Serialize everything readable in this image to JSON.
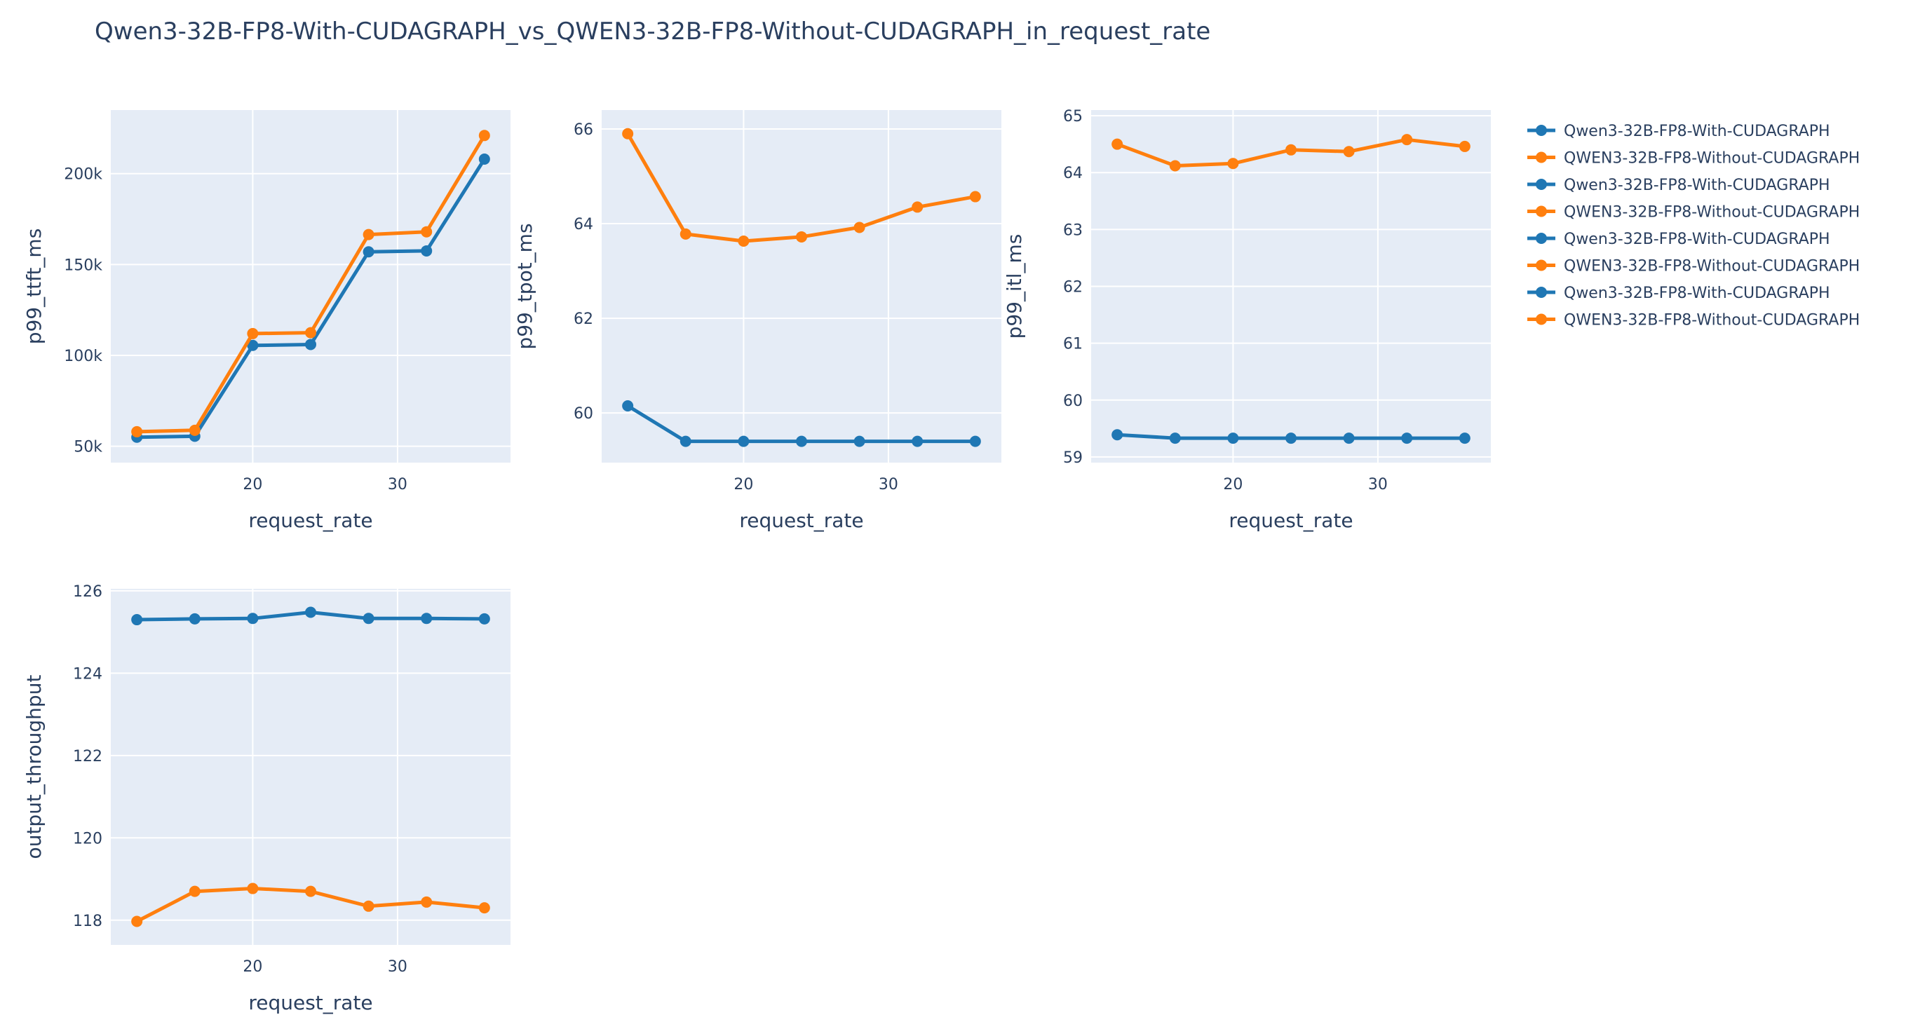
{
  "figure": {
    "title": "Qwen3-32B-FP8-With-CUDAGRAPH_vs_QWEN3-32B-FP8-Without-CUDAGRAPH_in_request_rate",
    "background": "#ffffff",
    "plot_background": "#e5ecf6",
    "grid_color": "#ffffff",
    "text_color": "#2a3f5f",
    "series_colors": {
      "Qwen3-32B-FP8-With-CUDAGRAPH": "#1f77b4",
      "QWEN3-32B-FP8-Without-CUDAGRAPH": "#ff7f0e"
    }
  },
  "legend": {
    "placement": "right",
    "entries": [
      {
        "name": "Qwen3-32B-FP8-With-CUDAGRAPH",
        "color": "#1f77b4"
      },
      {
        "name": "QWEN3-32B-FP8-Without-CUDAGRAPH",
        "color": "#ff7f0e"
      },
      {
        "name": "Qwen3-32B-FP8-With-CUDAGRAPH",
        "color": "#1f77b4"
      },
      {
        "name": "QWEN3-32B-FP8-Without-CUDAGRAPH",
        "color": "#ff7f0e"
      },
      {
        "name": "Qwen3-32B-FP8-With-CUDAGRAPH",
        "color": "#1f77b4"
      },
      {
        "name": "QWEN3-32B-FP8-Without-CUDAGRAPH",
        "color": "#ff7f0e"
      },
      {
        "name": "Qwen3-32B-FP8-With-CUDAGRAPH",
        "color": "#1f77b4"
      },
      {
        "name": "QWEN3-32B-FP8-Without-CUDAGRAPH",
        "color": "#ff7f0e"
      }
    ]
  },
  "chart_data": [
    {
      "id": "ttft",
      "type": "line",
      "xlabel": "request_rate",
      "ylabel": "p99_ttft_ms",
      "xlim": [
        10.2,
        37.8
      ],
      "ylim": [
        41000,
        235000
      ],
      "grid": true,
      "xticks": [
        {
          "value": 20,
          "label": "20"
        },
        {
          "value": 30,
          "label": "30"
        }
      ],
      "yticks": [
        {
          "value": 50000,
          "label": "50k"
        },
        {
          "value": 100000,
          "label": "100k"
        },
        {
          "value": 150000,
          "label": "150k"
        },
        {
          "value": 200000,
          "label": "200k"
        }
      ],
      "x": [
        12,
        16,
        20,
        24,
        28,
        32,
        36
      ],
      "series": [
        {
          "name": "Qwen3-32B-FP8-With-CUDAGRAPH",
          "color": "#1f77b4",
          "values": [
            55000,
            55500,
            105500,
            106000,
            157000,
            157500,
            208000
          ]
        },
        {
          "name": "QWEN3-32B-FP8-Without-CUDAGRAPH",
          "color": "#ff7f0e",
          "values": [
            58000,
            58800,
            112000,
            112500,
            166500,
            168000,
            221000
          ]
        }
      ]
    },
    {
      "id": "tpot",
      "type": "line",
      "xlabel": "request_rate",
      "ylabel": "p99_tpot_ms",
      "xlim": [
        10.2,
        37.8
      ],
      "ylim": [
        58.95,
        66.4
      ],
      "grid": true,
      "xticks": [
        {
          "value": 20,
          "label": "20"
        },
        {
          "value": 30,
          "label": "30"
        }
      ],
      "yticks": [
        {
          "value": 60,
          "label": "60"
        },
        {
          "value": 62,
          "label": "62"
        },
        {
          "value": 64,
          "label": "64"
        },
        {
          "value": 66,
          "label": "66"
        }
      ],
      "x": [
        12,
        16,
        20,
        24,
        28,
        32,
        36
      ],
      "series": [
        {
          "name": "Qwen3-32B-FP8-With-CUDAGRAPH",
          "color": "#1f77b4",
          "values": [
            60.15,
            59.4,
            59.4,
            59.4,
            59.4,
            59.4,
            59.4
          ]
        },
        {
          "name": "QWEN3-32B-FP8-Without-CUDAGRAPH",
          "color": "#ff7f0e",
          "values": [
            65.9,
            63.78,
            63.63,
            63.72,
            63.92,
            64.35,
            64.57
          ]
        }
      ]
    },
    {
      "id": "itl",
      "type": "line",
      "xlabel": "request_rate",
      "ylabel": "p99_itl_ms",
      "xlim": [
        10.2,
        37.8
      ],
      "ylim": [
        58.9,
        65.1
      ],
      "grid": true,
      "xticks": [
        {
          "value": 20,
          "label": "20"
        },
        {
          "value": 30,
          "label": "30"
        }
      ],
      "yticks": [
        {
          "value": 59,
          "label": "59"
        },
        {
          "value": 60,
          "label": "60"
        },
        {
          "value": 61,
          "label": "61"
        },
        {
          "value": 62,
          "label": "62"
        },
        {
          "value": 63,
          "label": "63"
        },
        {
          "value": 64,
          "label": "64"
        },
        {
          "value": 65,
          "label": "65"
        }
      ],
      "x": [
        12,
        16,
        20,
        24,
        28,
        32,
        36
      ],
      "series": [
        {
          "name": "Qwen3-32B-FP8-With-CUDAGRAPH",
          "color": "#1f77b4",
          "values": [
            59.39,
            59.33,
            59.33,
            59.33,
            59.33,
            59.33,
            59.33
          ]
        },
        {
          "name": "QWEN3-32B-FP8-Without-CUDAGRAPH",
          "color": "#ff7f0e",
          "values": [
            64.5,
            64.12,
            64.16,
            64.4,
            64.37,
            64.58,
            64.46
          ]
        }
      ]
    },
    {
      "id": "throughput",
      "type": "line",
      "xlabel": "request_rate",
      "ylabel": "output_throughput",
      "xlim": [
        10.2,
        37.8
      ],
      "ylim": [
        117.4,
        126.05
      ],
      "grid": true,
      "xticks": [
        {
          "value": 20,
          "label": "20"
        },
        {
          "value": 30,
          "label": "30"
        }
      ],
      "yticks": [
        {
          "value": 118,
          "label": "118"
        },
        {
          "value": 120,
          "label": "120"
        },
        {
          "value": 122,
          "label": "122"
        },
        {
          "value": 124,
          "label": "124"
        },
        {
          "value": 126,
          "label": "126"
        }
      ],
      "x": [
        12,
        16,
        20,
        24,
        28,
        32,
        36
      ],
      "series": [
        {
          "name": "Qwen3-32B-FP8-With-CUDAGRAPH",
          "color": "#1f77b4",
          "values": [
            125.3,
            125.32,
            125.33,
            125.48,
            125.33,
            125.33,
            125.32
          ]
        },
        {
          "name": "QWEN3-32B-FP8-Without-CUDAGRAPH",
          "color": "#ff7f0e",
          "values": [
            117.97,
            118.7,
            118.77,
            118.7,
            118.34,
            118.44,
            118.3
          ]
        }
      ]
    }
  ]
}
